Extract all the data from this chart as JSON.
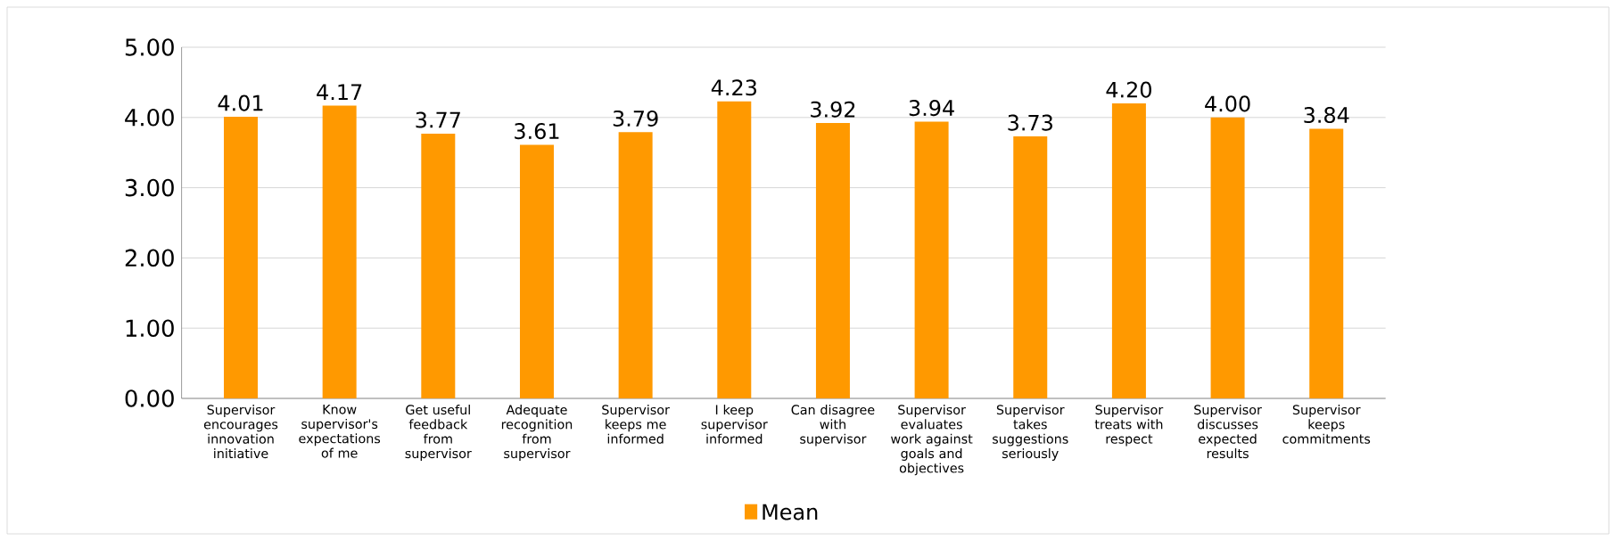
{
  "chart_data": {
    "type": "bar",
    "categories": [
      "Supervisor encourages innovation initiative",
      "Know supervisor's expectations of me",
      "Get useful feedback from supervisor",
      "Adequate recognition from supervisor",
      "Supervisor keeps me informed",
      "I keep supervisor informed",
      "Can disagree with supervisor",
      "Supervisor evaluates work against goals and objectives",
      "Supervisor takes suggestions seriously",
      "Supervisor treats with respect",
      "Supervisor discusses expected results",
      "Supervisor keeps commitments"
    ],
    "series": [
      {
        "name": "Mean",
        "color": "#ff9900",
        "values": [
          4.01,
          4.17,
          3.77,
          3.61,
          3.79,
          4.23,
          3.92,
          3.94,
          3.73,
          4.2,
          4.0,
          3.84
        ],
        "value_labels": [
          "4.01",
          "4.17",
          "3.77",
          "3.61",
          "3.79",
          "4.23",
          "3.92",
          "3.94",
          "3.73",
          "4.20",
          "4.00",
          "3.84"
        ]
      }
    ],
    "ylim": [
      0,
      5
    ],
    "yticks": [
      {
        "value": 0,
        "label": "0.00"
      },
      {
        "value": 1,
        "label": "1.00"
      },
      {
        "value": 2,
        "label": "2.00"
      },
      {
        "value": 3,
        "label": "3.00"
      },
      {
        "value": 4,
        "label": "4.00"
      },
      {
        "value": 5,
        "label": "5.00"
      }
    ],
    "grid": "y",
    "legend": "bottom"
  }
}
